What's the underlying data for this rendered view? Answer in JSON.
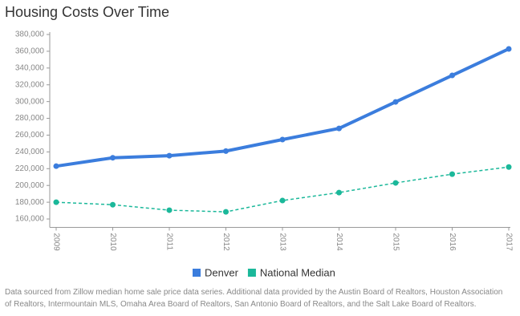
{
  "chart_data": {
    "type": "line",
    "title": "Housing Costs Over Time",
    "categories": [
      "2009",
      "2010",
      "2011",
      "2012",
      "2013",
      "2014",
      "2015",
      "2016",
      "2017"
    ],
    "series": [
      {
        "name": "Denver",
        "color": "#3b7ddd",
        "line_style": "solid",
        "values": [
          223000,
          233000,
          235500,
          241000,
          254700,
          268000,
          299600,
          331200,
          362800
        ]
      },
      {
        "name": "National Median",
        "color": "#1bb89a",
        "line_style": "dashed",
        "values": [
          180000,
          177000,
          170500,
          168500,
          182000,
          191500,
          203000,
          213500,
          222000
        ]
      }
    ],
    "ylim": [
      150000,
      380000
    ],
    "yticks": [
      {
        "value": 160000,
        "label": "160,000"
      },
      {
        "value": 180000,
        "label": "180,000"
      },
      {
        "value": 200000,
        "label": "200,000"
      },
      {
        "value": 220000,
        "label": "220,000"
      },
      {
        "value": 240000,
        "label": "240,000"
      },
      {
        "value": 260000,
        "label": "260,000"
      },
      {
        "value": 280000,
        "label": "280,000"
      },
      {
        "value": 300000,
        "label": "300,000"
      },
      {
        "value": 320000,
        "label": "320,000"
      },
      {
        "value": 340000,
        "label": "340,000"
      },
      {
        "value": 360000,
        "label": "360,000"
      },
      {
        "value": 380000,
        "label": "380,000"
      }
    ],
    "note": "Data sourced from Zillow median home sale price data series. Additional data provided by the Austin Board of Realtors, Houston Association of Realtors, Intermountain MLS, Omaha Area Board of Realtors, San Antonio Board of Realtors, and the Salt Lake Board of Realtors."
  }
}
